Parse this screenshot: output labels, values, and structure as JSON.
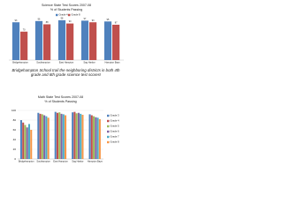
{
  "chart_data": [
    {
      "type": "bar",
      "title": "Science State Test Scores 2007-08",
      "subtitle": "% of Students Passing",
      "categories": [
        "Bridgehampton",
        "Southampton",
        "East Hampton",
        "Sag Harbor",
        "Hampton Bays"
      ],
      "series": [
        {
          "name": "Grade 4",
          "color": "#4f81bd",
          "values": [
            93,
            96,
            98,
            97,
            95
          ]
        },
        {
          "name": "Grade 8",
          "color": "#c0504d",
          "values": [
            70,
            88,
            90,
            93,
            87
          ]
        }
      ],
      "ylim": [
        0,
        100
      ],
      "legend": "top",
      "data_labels": true
    },
    {
      "type": "bar",
      "title": "Math State Test Scores 2007-08",
      "subtitle": "% of Students Passing",
      "categories": [
        "Bridgehampton",
        "Southampton",
        "East Hampton",
        "Sag Harbor",
        "Hampton Bays"
      ],
      "series": [
        {
          "name": "Grade 3",
          "color": "#4f81bd",
          "values": [
            80,
            95,
            97,
            96,
            92
          ]
        },
        {
          "name": "Grade 4",
          "color": "#c0504d",
          "values": [
            75,
            93,
            95,
            97,
            90
          ]
        },
        {
          "name": "Grade 5",
          "color": "#9bbb59",
          "values": [
            70,
            92,
            96,
            94,
            88
          ]
        },
        {
          "name": "Grade 6",
          "color": "#8064a2",
          "values": [
            65,
            90,
            93,
            95,
            86
          ]
        },
        {
          "name": "Grade 7",
          "color": "#4bacc6",
          "values": [
            72,
            88,
            92,
            93,
            85
          ]
        },
        {
          "name": "Grade 8",
          "color": "#f79646",
          "values": [
            60,
            85,
            90,
            91,
            82
          ]
        }
      ],
      "ylim": [
        0,
        100
      ],
      "yticks": [
        0,
        20,
        40,
        60,
        80,
        100
      ],
      "grid": true,
      "legend": "right",
      "data_labels": false
    }
  ],
  "note": "Bridgehampton School trail the neighboring districts in both 4th grade and 8th grade science test scores!"
}
